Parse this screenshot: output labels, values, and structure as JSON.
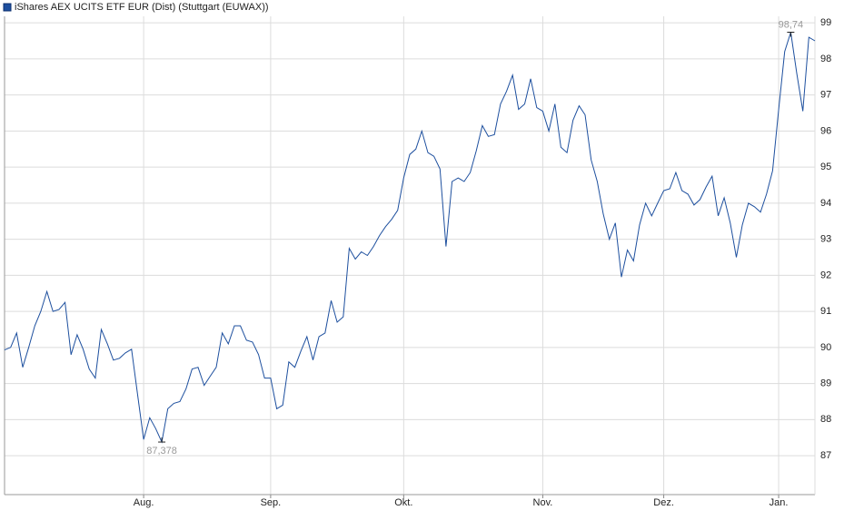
{
  "chart_data": {
    "type": "line",
    "series": [
      {
        "name": "iShares AEX UCITS ETF EUR (Dist) (Stuttgart (EUWAX))",
        "color": "#1d4f9e",
        "values": [
          89.93,
          90.0,
          90.4,
          89.45,
          90.0,
          90.6,
          91.0,
          91.55,
          91.0,
          91.05,
          91.25,
          89.8,
          90.35,
          89.95,
          89.4,
          89.15,
          90.5,
          90.1,
          89.65,
          89.7,
          89.85,
          89.95,
          88.7,
          87.45,
          88.05,
          87.75,
          87.378,
          88.3,
          88.45,
          88.5,
          88.85,
          89.4,
          89.45,
          88.95,
          89.2,
          89.45,
          90.4,
          90.1,
          90.6,
          90.6,
          90.2,
          90.15,
          89.8,
          89.15,
          89.15,
          88.3,
          88.4,
          89.6,
          89.45,
          89.9,
          90.3,
          89.65,
          90.3,
          90.4,
          91.3,
          90.7,
          90.85,
          92.75,
          92.45,
          92.65,
          92.55,
          92.8,
          93.1,
          93.35,
          93.55,
          93.8,
          94.7,
          95.35,
          95.5,
          96.0,
          95.4,
          95.3,
          94.95,
          92.8,
          94.6,
          94.7,
          94.6,
          94.85,
          95.45,
          96.15,
          95.85,
          95.9,
          96.75,
          97.1,
          97.55,
          96.6,
          96.75,
          97.45,
          96.65,
          96.55,
          96.0,
          96.75,
          95.55,
          95.4,
          96.3,
          96.7,
          96.45,
          95.2,
          94.6,
          93.7,
          93.0,
          93.45,
          91.95,
          92.7,
          92.4,
          93.4,
          94.0,
          93.65,
          94.0,
          94.35,
          94.4,
          94.85,
          94.35,
          94.25,
          93.95,
          94.1,
          94.45,
          94.75,
          93.65,
          94.15,
          93.45,
          92.5,
          93.4,
          94.0,
          93.9,
          93.75,
          94.25,
          94.9,
          96.6,
          98.2,
          98.74,
          97.6,
          96.55,
          98.6,
          98.5
        ]
      }
    ],
    "xlim": [
      0,
      134
    ],
    "xticks": [
      {
        "value": 23,
        "label": "Aug."
      },
      {
        "value": 44,
        "label": "Sep."
      },
      {
        "value": 66,
        "label": "Okt."
      },
      {
        "value": 89,
        "label": "Nov."
      },
      {
        "value": 109,
        "label": "Dez."
      },
      {
        "value": 128,
        "label": "Jan."
      }
    ],
    "ylim": [
      85.92,
      99.18
    ],
    "yticks": [
      87,
      88,
      89,
      90,
      91,
      92,
      93,
      94,
      95,
      96,
      97,
      98,
      99
    ],
    "annotations": [
      {
        "value": 98.74,
        "label": "98,74"
      },
      {
        "value": 87.378,
        "label": "87,378"
      }
    ],
    "grid": true,
    "legend": "top-left"
  }
}
